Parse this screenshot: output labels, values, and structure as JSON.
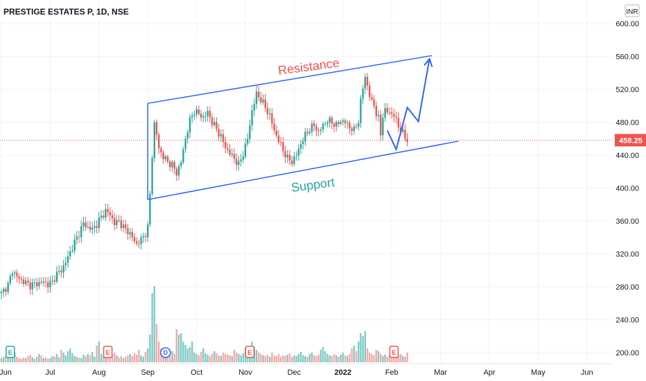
{
  "header": {
    "title": "PRESTIGE ESTATES P, 1D, NSE",
    "currency": "INR"
  },
  "price_label": {
    "value": "458.25",
    "bg": "#ef5350"
  },
  "colors": {
    "up": "#26a69a",
    "down": "#ef5350",
    "vol_up": "#80cbc4",
    "vol_down": "#f7a9a7",
    "trend": "#2962ff",
    "grid": "#f0f3fa"
  },
  "annotations": {
    "resistance": {
      "text": "Resistance",
      "color": "#ef5350"
    },
    "support": {
      "text": "Support",
      "color": "#26a69a"
    }
  },
  "chart_data": {
    "type": "candlestick",
    "title": "PRESTIGE ESTATES P, 1D, NSE",
    "x_labels": [
      "Jun",
      "Jul",
      "Aug",
      "Sep",
      "Oct",
      "Nov",
      "Dec",
      "2022",
      "Feb",
      "Mar",
      "Apr",
      "May",
      "Jun"
    ],
    "x_label_positions": [
      0,
      22,
      44,
      66,
      88,
      110,
      132,
      154,
      176,
      198,
      220,
      242,
      264
    ],
    "y_ticks": [
      "600.00",
      "560.00",
      "520.00",
      "480.00",
      "440.00",
      "400.00",
      "360.00",
      "320.00",
      "280.00",
      "240.00",
      "200.00"
    ],
    "ylim": [
      191,
      618
    ],
    "last_price": 458.25,
    "close_path": [
      [
        0,
        272
      ],
      [
        3,
        282
      ],
      [
        5,
        300
      ],
      [
        7,
        292
      ],
      [
        9,
        288
      ],
      [
        11,
        285
      ],
      [
        13,
        282
      ],
      [
        16,
        284
      ],
      [
        19,
        286
      ],
      [
        21,
        283
      ],
      [
        23,
        286
      ],
      [
        25,
        296
      ],
      [
        27,
        300
      ],
      [
        29,
        310
      ],
      [
        31,
        322
      ],
      [
        33,
        334
      ],
      [
        35,
        345
      ],
      [
        37,
        357
      ],
      [
        39,
        352
      ],
      [
        41,
        350
      ],
      [
        43,
        356
      ],
      [
        45,
        365
      ],
      [
        47,
        372
      ],
      [
        49,
        368
      ],
      [
        51,
        357
      ],
      [
        53,
        360
      ],
      [
        55,
        352
      ],
      [
        57,
        348
      ],
      [
        59,
        340
      ],
      [
        61,
        332
      ],
      [
        63,
        337
      ],
      [
        65,
        345
      ],
      [
        66,
        352
      ],
      [
        67,
        392
      ],
      [
        68,
        440
      ],
      [
        69,
        478
      ],
      [
        70,
        465
      ],
      [
        71,
        448
      ],
      [
        73,
        438
      ],
      [
        75,
        432
      ],
      [
        77,
        428
      ],
      [
        79,
        418
      ],
      [
        81,
        432
      ],
      [
        83,
        460
      ],
      [
        85,
        482
      ],
      [
        87,
        494
      ],
      [
        89,
        490
      ],
      [
        91,
        486
      ],
      [
        93,
        492
      ],
      [
        95,
        480
      ],
      [
        97,
        472
      ],
      [
        99,
        462
      ],
      [
        101,
        450
      ],
      [
        103,
        442
      ],
      [
        105,
        436
      ],
      [
        107,
        428
      ],
      [
        109,
        442
      ],
      [
        111,
        460
      ],
      [
        113,
        494
      ],
      [
        115,
        514
      ],
      [
        117,
        508
      ],
      [
        119,
        498
      ],
      [
        121,
        488
      ],
      [
        123,
        470
      ],
      [
        125,
        458
      ],
      [
        127,
        446
      ],
      [
        129,
        436
      ],
      [
        131,
        432
      ],
      [
        133,
        440
      ],
      [
        135,
        454
      ],
      [
        137,
        464
      ],
      [
        139,
        472
      ],
      [
        141,
        476
      ],
      [
        143,
        468
      ],
      [
        145,
        476
      ],
      [
        147,
        482
      ],
      [
        149,
        480
      ],
      [
        151,
        476
      ],
      [
        153,
        482
      ],
      [
        155,
        480
      ],
      [
        157,
        474
      ],
      [
        159,
        470
      ],
      [
        161,
        482
      ],
      [
        162,
        505
      ],
      [
        163,
        522
      ],
      [
        164,
        536
      ],
      [
        165,
        524
      ],
      [
        166,
        512
      ],
      [
        167,
        505
      ],
      [
        168,
        502
      ],
      [
        169,
        490
      ],
      [
        170,
        484
      ],
      [
        171,
        466
      ],
      [
        172,
        488
      ],
      [
        173,
        494
      ],
      [
        175,
        492
      ],
      [
        177,
        488
      ],
      [
        179,
        476
      ],
      [
        181,
        466
      ],
      [
        183,
        458
      ]
    ],
    "volume_bars": [
      [
        0,
        6
      ],
      [
        1,
        8
      ],
      [
        2,
        10
      ],
      [
        3,
        7
      ],
      [
        4,
        12
      ],
      [
        5,
        9
      ],
      [
        6,
        14
      ],
      [
        7,
        8
      ],
      [
        8,
        6
      ],
      [
        9,
        5
      ],
      [
        10,
        7
      ],
      [
        11,
        6
      ],
      [
        12,
        9
      ],
      [
        13,
        11
      ],
      [
        14,
        7
      ],
      [
        15,
        5
      ],
      [
        16,
        8
      ],
      [
        17,
        12
      ],
      [
        18,
        10
      ],
      [
        19,
        6
      ],
      [
        20,
        7
      ],
      [
        21,
        5
      ],
      [
        22,
        6
      ],
      [
        23,
        9
      ],
      [
        24,
        8
      ],
      [
        25,
        12
      ],
      [
        26,
        7
      ],
      [
        27,
        18
      ],
      [
        28,
        14
      ],
      [
        29,
        10
      ],
      [
        30,
        16
      ],
      [
        31,
        20
      ],
      [
        32,
        13
      ],
      [
        33,
        9
      ],
      [
        34,
        8
      ],
      [
        35,
        7
      ],
      [
        36,
        6
      ],
      [
        37,
        11
      ],
      [
        38,
        9
      ],
      [
        39,
        12
      ],
      [
        40,
        10
      ],
      [
        41,
        15
      ],
      [
        42,
        8
      ],
      [
        43,
        24
      ],
      [
        44,
        30
      ],
      [
        45,
        12
      ],
      [
        46,
        9
      ],
      [
        47,
        8
      ],
      [
        48,
        10
      ],
      [
        49,
        9
      ],
      [
        50,
        11
      ],
      [
        51,
        14
      ],
      [
        52,
        10
      ],
      [
        53,
        7
      ],
      [
        54,
        9
      ],
      [
        55,
        6
      ],
      [
        56,
        8
      ],
      [
        57,
        10
      ],
      [
        58,
        12
      ],
      [
        59,
        9
      ],
      [
        60,
        13
      ],
      [
        61,
        11
      ],
      [
        62,
        18
      ],
      [
        63,
        10
      ],
      [
        64,
        8
      ],
      [
        65,
        15
      ],
      [
        66,
        20
      ],
      [
        67,
        40
      ],
      [
        68,
        100
      ],
      [
        69,
        110
      ],
      [
        70,
        55
      ],
      [
        71,
        30
      ],
      [
        72,
        20
      ],
      [
        73,
        18
      ],
      [
        74,
        14
      ],
      [
        75,
        12
      ],
      [
        76,
        10
      ],
      [
        77,
        16
      ],
      [
        78,
        12
      ],
      [
        79,
        48
      ],
      [
        80,
        40
      ],
      [
        81,
        42
      ],
      [
        82,
        30
      ],
      [
        83,
        25
      ],
      [
        84,
        20
      ],
      [
        85,
        22
      ],
      [
        86,
        30
      ],
      [
        87,
        14
      ],
      [
        88,
        12
      ],
      [
        89,
        10
      ],
      [
        90,
        15
      ],
      [
        91,
        20
      ],
      [
        92,
        13
      ],
      [
        93,
        11
      ],
      [
        94,
        9
      ],
      [
        95,
        12
      ],
      [
        96,
        16
      ],
      [
        97,
        13
      ],
      [
        98,
        10
      ],
      [
        99,
        9
      ],
      [
        100,
        14
      ],
      [
        101,
        12
      ],
      [
        102,
        11
      ],
      [
        103,
        10
      ],
      [
        104,
        9
      ],
      [
        105,
        18
      ],
      [
        106,
        14
      ],
      [
        107,
        12
      ],
      [
        108,
        10
      ],
      [
        109,
        13
      ],
      [
        110,
        20
      ],
      [
        111,
        15
      ],
      [
        112,
        12
      ],
      [
        113,
        30
      ],
      [
        114,
        22
      ],
      [
        115,
        18
      ],
      [
        116,
        14
      ],
      [
        117,
        12
      ],
      [
        118,
        10
      ],
      [
        119,
        9
      ],
      [
        120,
        11
      ],
      [
        121,
        8
      ],
      [
        122,
        14
      ],
      [
        123,
        10
      ],
      [
        124,
        9
      ],
      [
        125,
        12
      ],
      [
        126,
        8
      ],
      [
        127,
        10
      ],
      [
        128,
        9
      ],
      [
        129,
        11
      ],
      [
        130,
        13
      ],
      [
        131,
        8
      ],
      [
        132,
        10
      ],
      [
        133,
        9
      ],
      [
        134,
        12
      ],
      [
        135,
        15
      ],
      [
        136,
        10
      ],
      [
        137,
        9
      ],
      [
        138,
        8
      ],
      [
        139,
        12
      ],
      [
        140,
        14
      ],
      [
        141,
        10
      ],
      [
        142,
        9
      ],
      [
        143,
        11
      ],
      [
        144,
        18
      ],
      [
        145,
        22
      ],
      [
        146,
        16
      ],
      [
        147,
        12
      ],
      [
        148,
        10
      ],
      [
        149,
        9
      ],
      [
        150,
        12
      ],
      [
        151,
        10
      ],
      [
        152,
        8
      ],
      [
        153,
        11
      ],
      [
        154,
        14
      ],
      [
        155,
        10
      ],
      [
        156,
        9
      ],
      [
        157,
        12
      ],
      [
        158,
        20
      ],
      [
        159,
        24
      ],
      [
        160,
        16
      ],
      [
        161,
        30
      ],
      [
        162,
        42
      ],
      [
        163,
        38
      ],
      [
        164,
        45
      ],
      [
        165,
        20
      ],
      [
        166,
        14
      ],
      [
        167,
        12
      ],
      [
        168,
        10
      ],
      [
        169,
        18
      ],
      [
        170,
        16
      ],
      [
        171,
        12
      ],
      [
        172,
        9
      ],
      [
        173,
        11
      ],
      [
        174,
        8
      ],
      [
        175,
        10
      ],
      [
        176,
        7
      ],
      [
        177,
        9
      ],
      [
        178,
        8
      ],
      [
        179,
        10
      ],
      [
        180,
        12
      ],
      [
        181,
        9
      ],
      [
        182,
        8
      ],
      [
        183,
        14
      ]
    ],
    "trendlines": {
      "resistance": [
        [
          66,
          503
        ],
        [
          194,
          561
        ]
      ],
      "support": [
        [
          66,
          386
        ],
        [
          206,
          457
        ]
      ]
    },
    "projection": [
      [
        174,
        470
      ],
      [
        178,
        447
      ],
      [
        183,
        498
      ],
      [
        188,
        481
      ],
      [
        193,
        557
      ]
    ],
    "events": [
      {
        "i": 4,
        "kind": "earnings",
        "label": "E",
        "color": "#26a69a"
      },
      {
        "i": 48,
        "kind": "earnings",
        "label": "E",
        "color": "#ef5350"
      },
      {
        "i": 74,
        "kind": "dividend",
        "label": "D",
        "color": "#2962ff"
      },
      {
        "i": 112,
        "kind": "earnings",
        "label": "E",
        "color": "#ef5350"
      },
      {
        "i": 177,
        "kind": "earnings",
        "label": "E",
        "color": "#ef5350",
        "outline": true
      }
    ]
  }
}
